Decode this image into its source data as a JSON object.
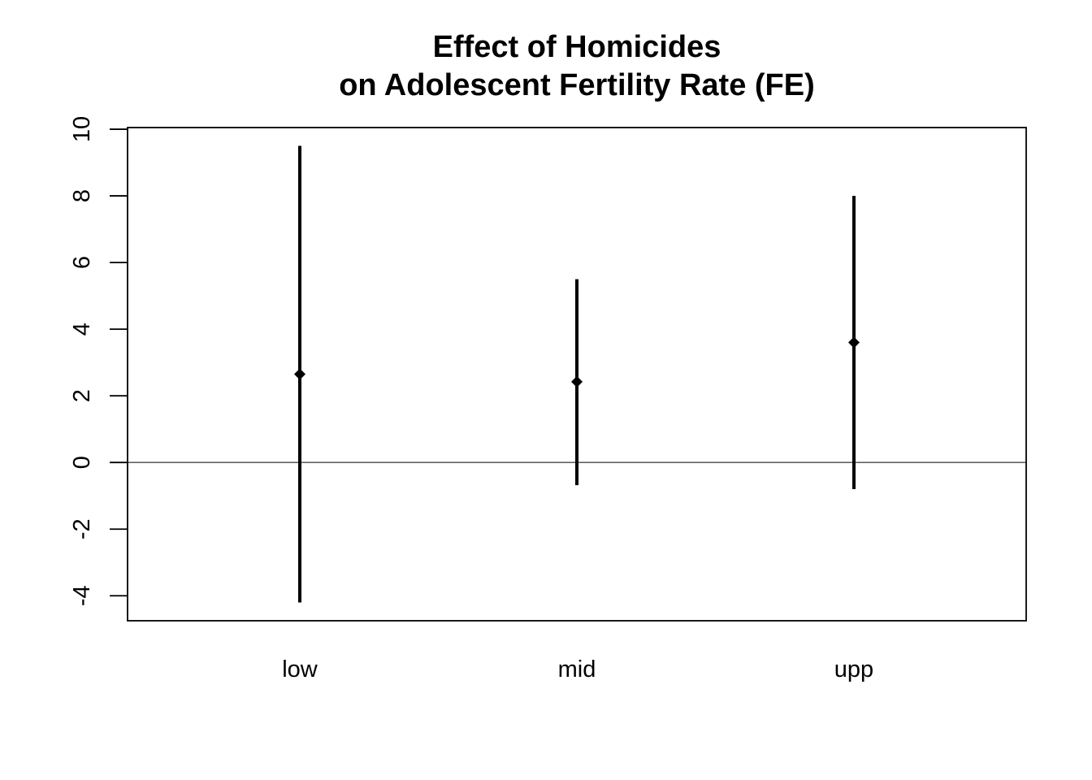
{
  "chart_data": {
    "type": "errorbar",
    "title": [
      "Effect of Homicides",
      "on Adolescent Fertility Rate (FE)"
    ],
    "xlabel": "",
    "ylabel": "",
    "categories": [
      "low",
      "mid",
      "upp"
    ],
    "estimate": [
      2.65,
      2.42,
      3.6
    ],
    "lower": [
      -4.2,
      -0.68,
      -0.8
    ],
    "upper": [
      9.5,
      5.5,
      8.0
    ],
    "ylim": [
      -4.75,
      10.05
    ],
    "yticks": [
      -4,
      -2,
      0,
      2,
      4,
      6,
      8,
      10
    ],
    "reference_line": 0,
    "grid": false,
    "colors": {
      "marks": "#000000",
      "background": "#ffffff"
    }
  }
}
